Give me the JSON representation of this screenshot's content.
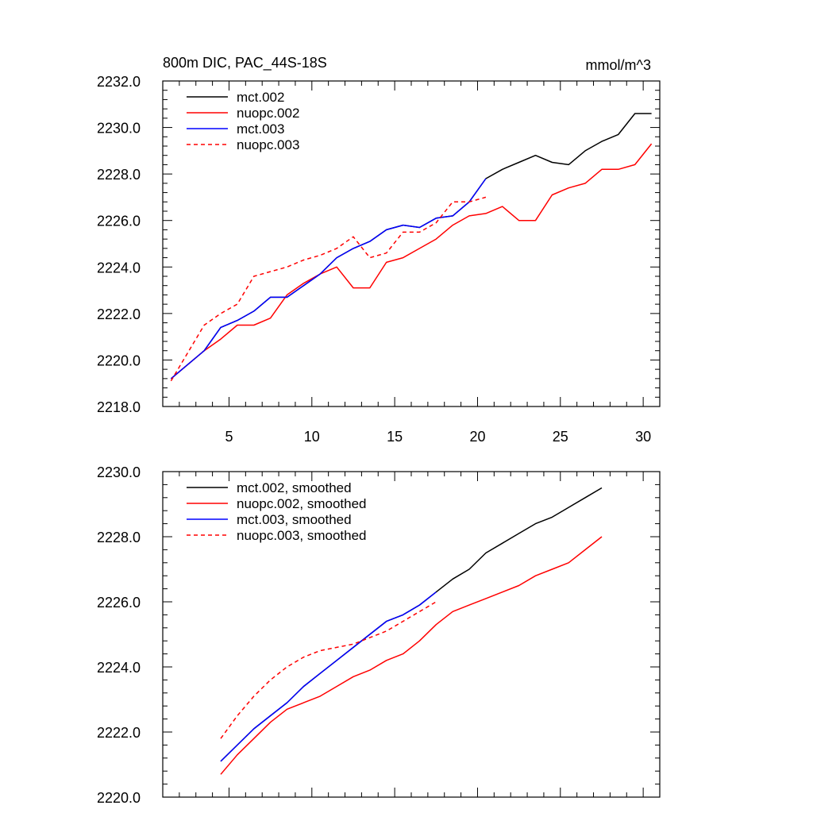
{
  "chart_data": [
    {
      "type": "line",
      "title": "800m DIC, PAC_44S-18S",
      "units": "mmol/m^3",
      "xlabel": "",
      "ylabel": "",
      "xlim": [
        1,
        31
      ],
      "ylim": [
        2218,
        2232
      ],
      "xticks": [
        5,
        10,
        15,
        20,
        25,
        30
      ],
      "xticklabels": [
        "5",
        "10",
        "15",
        "20",
        "25",
        "30"
      ],
      "yticks": [
        2218,
        2220,
        2222,
        2224,
        2226,
        2228,
        2230,
        2232
      ],
      "yticklabels": [
        "2218.0",
        "2220.0",
        "2222.0",
        "2224.0",
        "2226.0",
        "2228.0",
        "2230.0",
        "2232.0"
      ],
      "legend_position": "top-left",
      "series": [
        {
          "name": "mct.002",
          "color": "#000000",
          "dash": "solid",
          "x": [
            1.5,
            2.5,
            3.5,
            4.5,
            5.5,
            6.5,
            7.5,
            8.5,
            9.5,
            10.5,
            11.5,
            12.5,
            13.5,
            14.5,
            15.5,
            16.5,
            17.5,
            18.5,
            19.5,
            20.5,
            21.5,
            22.5,
            23.5,
            24.5,
            25.5,
            26.5,
            27.5,
            28.5,
            29.5,
            30.5
          ],
          "values": [
            2219.2,
            2219.8,
            2220.4,
            2221.4,
            2221.7,
            2222.1,
            2222.7,
            2222.7,
            2223.2,
            2223.7,
            2224.4,
            2224.8,
            2225.1,
            2225.6,
            2225.8,
            2225.7,
            2226.1,
            2226.2,
            2226.8,
            2227.8,
            2228.2,
            2228.5,
            2228.8,
            2228.5,
            2228.4,
            2229.0,
            2229.4,
            2229.7,
            2230.6,
            2230.6
          ]
        },
        {
          "name": "nuopc.002",
          "color": "#ff0000",
          "dash": "solid",
          "x": [
            1.5,
            2.5,
            3.5,
            4.5,
            5.5,
            6.5,
            7.5,
            8.5,
            9.5,
            10.5,
            11.5,
            12.5,
            13.5,
            14.5,
            15.5,
            16.5,
            17.5,
            18.5,
            19.5,
            20.5,
            21.5,
            22.5,
            23.5,
            24.5,
            25.5,
            26.5,
            27.5,
            28.5,
            29.5,
            30.5
          ],
          "values": [
            2219.2,
            2219.8,
            2220.4,
            2220.9,
            2221.5,
            2221.5,
            2221.8,
            2222.8,
            2223.3,
            2223.7,
            2224.0,
            2223.1,
            2223.1,
            2224.2,
            2224.4,
            2224.8,
            2225.2,
            2225.8,
            2226.2,
            2226.3,
            2226.6,
            2226.0,
            2226.0,
            2227.1,
            2227.4,
            2227.6,
            2228.2,
            2228.2,
            2228.4,
            2229.3
          ]
        },
        {
          "name": "mct.003",
          "color": "#0000ff",
          "dash": "solid",
          "x": [
            1.5,
            2.5,
            3.5,
            4.5,
            5.5,
            6.5,
            7.5,
            8.5,
            9.5,
            10.5,
            11.5,
            12.5,
            13.5,
            14.5,
            15.5,
            16.5,
            17.5,
            18.5,
            19.5,
            20.5
          ],
          "values": [
            2219.2,
            2219.8,
            2220.4,
            2221.4,
            2221.7,
            2222.1,
            2222.7,
            2222.7,
            2223.2,
            2223.7,
            2224.4,
            2224.8,
            2225.1,
            2225.6,
            2225.8,
            2225.7,
            2226.1,
            2226.2,
            2226.8,
            2227.8
          ]
        },
        {
          "name": "nuopc.003",
          "color": "#ff0000",
          "dash": "dashed",
          "x": [
            1.5,
            2.5,
            3.5,
            4.5,
            5.5,
            6.5,
            7.5,
            8.5,
            9.5,
            10.5,
            11.5,
            12.5,
            13.5,
            14.5,
            15.5,
            16.5,
            17.5,
            18.5,
            19.5,
            20.5
          ],
          "values": [
            2219.1,
            2220.3,
            2221.5,
            2222.0,
            2222.4,
            2223.6,
            2223.8,
            2224.0,
            2224.3,
            2224.5,
            2224.8,
            2225.3,
            2224.4,
            2224.6,
            2225.5,
            2225.5,
            2225.9,
            2226.8,
            2226.8,
            2227.0
          ]
        }
      ]
    },
    {
      "type": "line",
      "title": "",
      "xlabel": "",
      "ylabel": "",
      "xlim": [
        1,
        31
      ],
      "ylim": [
        2220,
        2230
      ],
      "xticks": [
        5,
        10,
        15,
        20,
        25,
        30
      ],
      "yticks": [
        2220,
        2222,
        2224,
        2226,
        2228,
        2230
      ],
      "yticklabels": [
        "2220.0",
        "2222.0",
        "2224.0",
        "2226.0",
        "2228.0",
        "2230.0"
      ],
      "legend_position": "top-left",
      "series": [
        {
          "name": "mct.002, smoothed",
          "color": "#000000",
          "dash": "solid",
          "x": [
            4.5,
            5.5,
            6.5,
            7.5,
            8.5,
            9.5,
            10.5,
            11.5,
            12.5,
            13.5,
            14.5,
            15.5,
            16.5,
            17.5,
            18.5,
            19.5,
            20.5,
            21.5,
            22.5,
            23.5,
            24.5,
            25.5,
            26.5,
            27.5
          ],
          "values": [
            2221.1,
            2221.6,
            2222.1,
            2222.5,
            2222.9,
            2223.4,
            2223.8,
            2224.2,
            2224.6,
            2225.0,
            2225.4,
            2225.6,
            2225.9,
            2226.3,
            2226.7,
            2227.0,
            2227.5,
            2227.8,
            2228.1,
            2228.4,
            2228.6,
            2228.9,
            2229.2,
            2229.5
          ]
        },
        {
          "name": "nuopc.002, smoothed",
          "color": "#ff0000",
          "dash": "solid",
          "x": [
            4.5,
            5.5,
            6.5,
            7.5,
            8.5,
            9.5,
            10.5,
            11.5,
            12.5,
            13.5,
            14.5,
            15.5,
            16.5,
            17.5,
            18.5,
            19.5,
            20.5,
            21.5,
            22.5,
            23.5,
            24.5,
            25.5,
            26.5,
            27.5
          ],
          "values": [
            2220.7,
            2221.3,
            2221.8,
            2222.3,
            2222.7,
            2222.9,
            2223.1,
            2223.4,
            2223.7,
            2223.9,
            2224.2,
            2224.4,
            2224.8,
            2225.3,
            2225.7,
            2225.9,
            2226.1,
            2226.3,
            2226.5,
            2226.8,
            2227.0,
            2227.2,
            2227.6,
            2228.0
          ]
        },
        {
          "name": "mct.003, smoothed",
          "color": "#0000ff",
          "dash": "solid",
          "x": [
            4.5,
            5.5,
            6.5,
            7.5,
            8.5,
            9.5,
            10.5,
            11.5,
            12.5,
            13.5,
            14.5,
            15.5,
            16.5,
            17.5
          ],
          "values": [
            2221.1,
            2221.6,
            2222.1,
            2222.5,
            2222.9,
            2223.4,
            2223.8,
            2224.2,
            2224.6,
            2225.0,
            2225.4,
            2225.6,
            2225.9,
            2226.3
          ]
        },
        {
          "name": "nuopc.003, smoothed",
          "color": "#ff0000",
          "dash": "dashed",
          "x": [
            4.5,
            5.5,
            6.5,
            7.5,
            8.5,
            9.5,
            10.5,
            11.5,
            12.5,
            13.5,
            14.5,
            15.5,
            16.5,
            17.5
          ],
          "values": [
            2221.8,
            2222.5,
            2223.1,
            2223.6,
            2224.0,
            2224.3,
            2224.5,
            2224.6,
            2224.7,
            2224.9,
            2225.1,
            2225.4,
            2225.7,
            2226.0
          ]
        }
      ]
    }
  ]
}
